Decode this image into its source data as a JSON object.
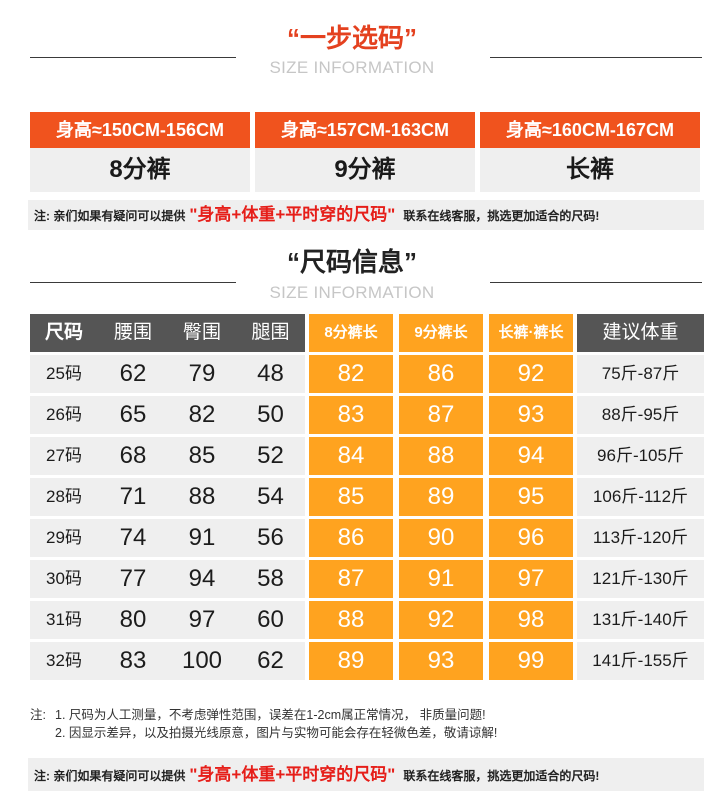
{
  "size_selection": {
    "title": "“一步选码”",
    "subtitle": "SIZE INFORMATION",
    "options": [
      {
        "height": "身高≈150CM-156CM",
        "length": "8分裤"
      },
      {
        "height": "身高≈157CM-163CM",
        "length": "9分裤"
      },
      {
        "height": "身高≈160CM-167CM",
        "length": "长裤"
      }
    ],
    "note": {
      "prefix": "注: 亲们如果有疑问可以提供",
      "highlight": "\"身高+体重+平时穿的尺码\"",
      "suffix": "联系在线客服，挑选更加适合的尺码!"
    }
  },
  "size_info": {
    "title": "“尺码信息”",
    "subtitle": "SIZE INFORMATION"
  },
  "size_table": {
    "headers": {
      "size": "尺码",
      "waist": "腰围",
      "hip": "臀围",
      "thigh": "腿围",
      "len_8": "8分裤长",
      "len_9": "9分裤长",
      "len_full": "长裤·裤长",
      "weight": "建议体重"
    },
    "rows": [
      {
        "size": "25码",
        "waist": 62,
        "hip": 79,
        "thigh": 48,
        "len_8": 82,
        "len_9": 86,
        "len_full": 92,
        "weight": "75斤-87斤"
      },
      {
        "size": "26码",
        "waist": 65,
        "hip": 82,
        "thigh": 50,
        "len_8": 83,
        "len_9": 87,
        "len_full": 93,
        "weight": "88斤-95斤"
      },
      {
        "size": "27码",
        "waist": 68,
        "hip": 85,
        "thigh": 52,
        "len_8": 84,
        "len_9": 88,
        "len_full": 94,
        "weight": "96斤-105斤"
      },
      {
        "size": "28码",
        "waist": 71,
        "hip": 88,
        "thigh": 54,
        "len_8": 85,
        "len_9": 89,
        "len_full": 95,
        "weight": "106斤-112斤"
      },
      {
        "size": "29码",
        "waist": 74,
        "hip": 91,
        "thigh": 56,
        "len_8": 86,
        "len_9": 90,
        "len_full": 96,
        "weight": "113斤-120斤"
      },
      {
        "size": "30码",
        "waist": 77,
        "hip": 94,
        "thigh": 58,
        "len_8": 87,
        "len_9": 91,
        "len_full": 97,
        "weight": "121斤-130斤"
      },
      {
        "size": "31码",
        "waist": 80,
        "hip": 97,
        "thigh": 60,
        "len_8": 88,
        "len_9": 92,
        "len_full": 98,
        "weight": "131斤-140斤"
      },
      {
        "size": "32码",
        "waist": 83,
        "hip": 100,
        "thigh": 62,
        "len_8": 89,
        "len_9": 93,
        "len_full": 99,
        "weight": "141斤-155斤"
      }
    ]
  },
  "notes": {
    "label": "注:",
    "items": [
      "1. 尺码为人工测量，不考虑弹性范围，误差在1-2cm属正常情况， 非质量问题!",
      "2. 因显示差异，以及拍摄光线原意，图片与实物可能会存在轻微色差，敬请谅解!"
    ]
  },
  "footer_note": {
    "prefix": "注: 亲们如果有疑问可以提供",
    "highlight": "\"身高+体重+平时穿的尺码\"",
    "suffix": "联系在线客服，挑选更加适合的尺码!"
  },
  "colors": {
    "title_red": "#e4411f",
    "header_orange": "#f0531e",
    "column_orange": "#ffa31f",
    "header_gray": "#555555",
    "highlight_red": "#e61e19"
  }
}
